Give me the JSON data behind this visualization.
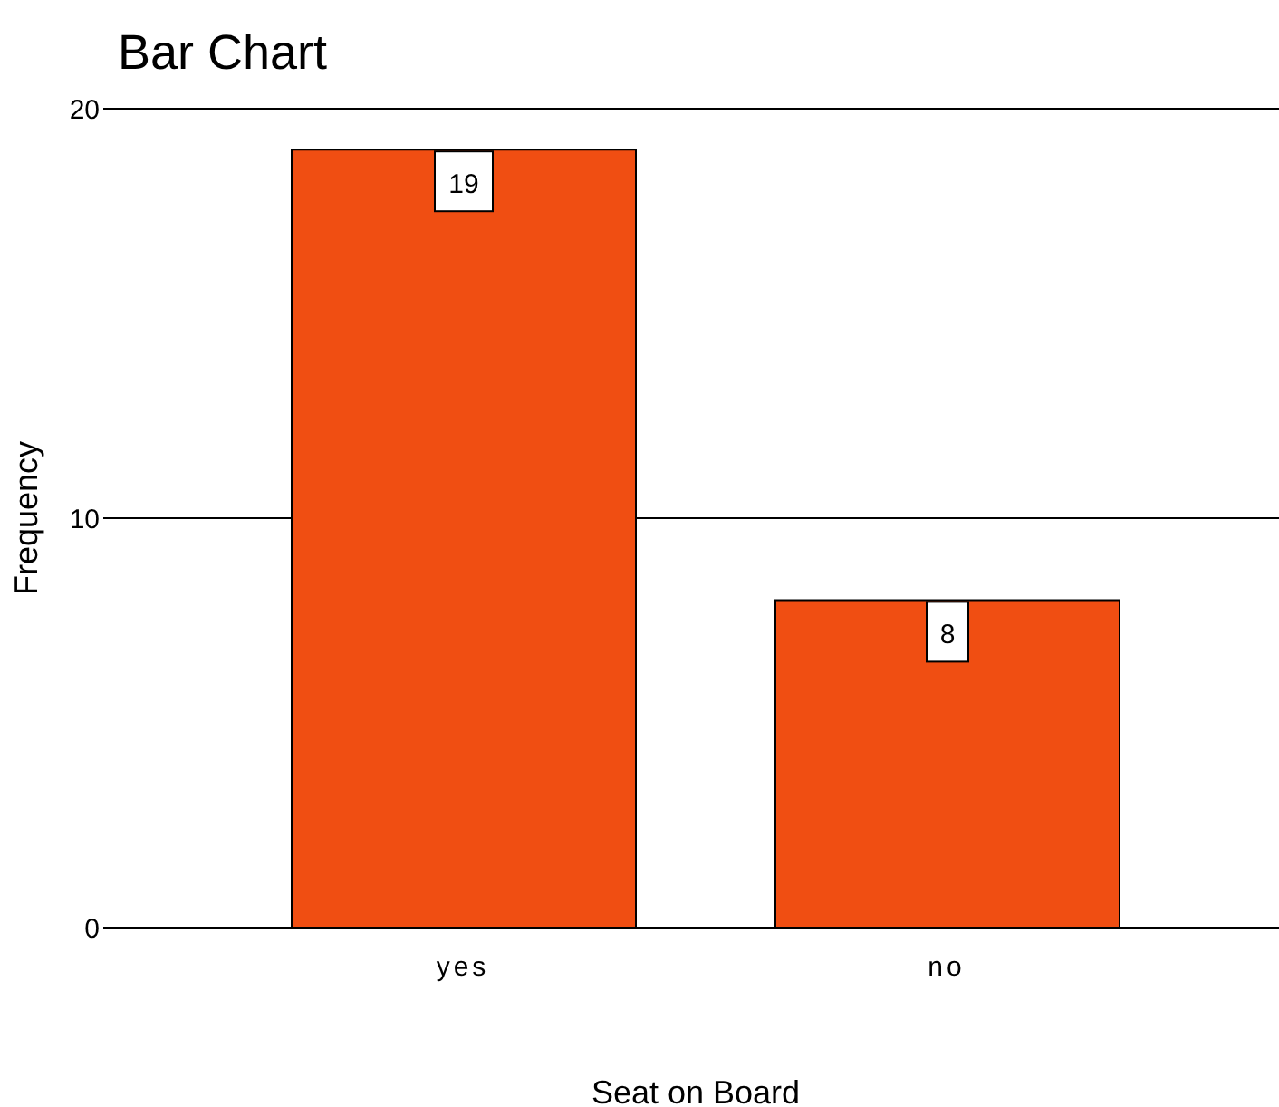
{
  "chart_data": {
    "type": "bar",
    "title": "Bar Chart",
    "xlabel": "Seat on Board",
    "ylabel": "Frequency",
    "categories": [
      "yes",
      "no"
    ],
    "values": [
      19,
      8
    ],
    "color": "#f04e12",
    "ylim": [
      0,
      20
    ],
    "yticks": [
      0,
      10,
      20
    ],
    "grid": "y",
    "data_labels": true
  }
}
